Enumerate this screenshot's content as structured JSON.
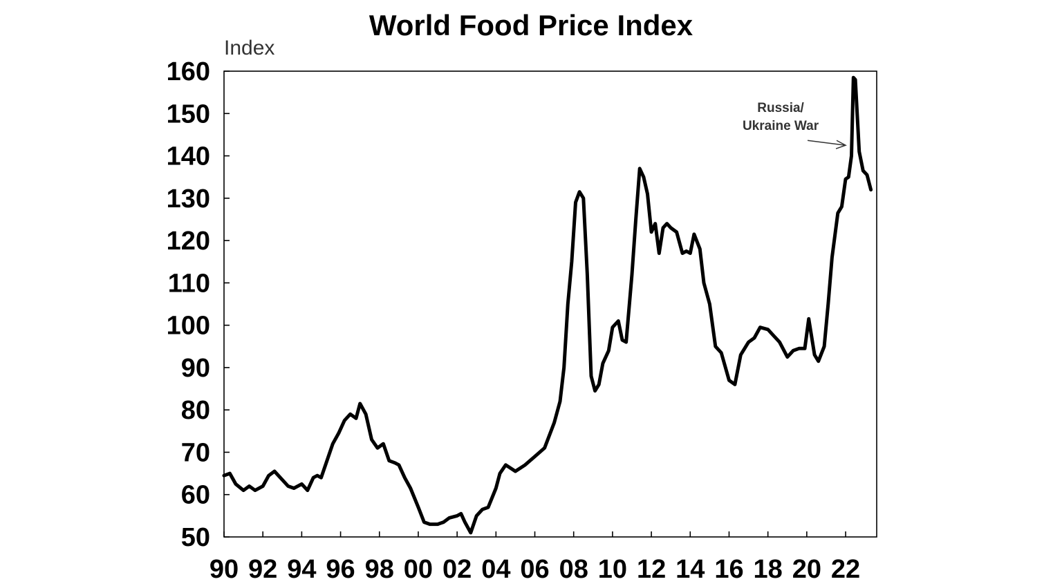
{
  "chart_data": {
    "type": "line",
    "title": "World Food Price Index",
    "ylabel": "Index",
    "xlabel": "",
    "ylim": [
      50,
      160
    ],
    "yticks": [
      50,
      60,
      70,
      80,
      90,
      100,
      110,
      120,
      130,
      140,
      150,
      160
    ],
    "xlim": [
      1990.0,
      2023.6
    ],
    "xticks": [
      1990,
      1992,
      1994,
      1996,
      1998,
      2000,
      2002,
      2004,
      2006,
      2008,
      2010,
      2012,
      2014,
      2016,
      2018,
      2020,
      2022
    ],
    "xtick_labels": [
      "90",
      "92",
      "94",
      "96",
      "98",
      "00",
      "02",
      "04",
      "06",
      "08",
      "10",
      "12",
      "14",
      "16",
      "18",
      "20",
      "22"
    ],
    "grid": false,
    "line_color": "#000000",
    "annotations": [
      {
        "text_lines": [
          "Russia/",
          "Ukraine War"
        ],
        "arrow_to": [
          2022.0,
          142.5
        ]
      }
    ],
    "series": [
      {
        "x": [
          1990.0,
          1990.3,
          1990.6,
          1991.0,
          1991.3,
          1991.6,
          1992.0,
          1992.3,
          1992.6,
          1993.0,
          1993.3,
          1993.6,
          1994.0,
          1994.3,
          1994.6,
          1994.8,
          1995.0,
          1995.3,
          1995.6,
          1995.9,
          1996.2,
          1996.5,
          1996.8,
          1997.0,
          1997.3,
          1997.6,
          1997.9,
          1998.2,
          1998.5,
          1998.8,
          1999.0,
          1999.3,
          1999.6,
          2000.0,
          2000.3,
          2000.6,
          2001.0,
          2001.3,
          2001.6,
          2002.0,
          2002.2,
          2002.4,
          2002.7,
          2003.0,
          2003.3,
          2003.6,
          2004.0,
          2004.2,
          2004.5,
          2005.0,
          2005.5,
          2006.0,
          2006.5,
          2007.0,
          2007.3,
          2007.5,
          2007.7,
          2007.9,
          2008.1,
          2008.3,
          2008.5,
          2008.7,
          2008.9,
          2009.1,
          2009.3,
          2009.5,
          2009.8,
          2010.0,
          2010.3,
          2010.5,
          2010.7,
          2011.0,
          2011.2,
          2011.4,
          2011.6,
          2011.8,
          2012.0,
          2012.2,
          2012.4,
          2012.6,
          2012.8,
          2013.0,
          2013.3,
          2013.6,
          2013.8,
          2014.0,
          2014.2,
          2014.5,
          2014.7,
          2015.0,
          2015.3,
          2015.6,
          2016.0,
          2016.3,
          2016.6,
          2017.0,
          2017.3,
          2017.6,
          2018.0,
          2018.3,
          2018.6,
          2019.0,
          2019.3,
          2019.6,
          2019.9,
          2020.1,
          2020.4,
          2020.6,
          2020.9,
          2021.1,
          2021.3,
          2021.6,
          2021.8,
          2022.0,
          2022.15,
          2022.3,
          2022.4,
          2022.5,
          2022.7,
          2022.9,
          2023.1,
          2023.3
        ],
        "values": [
          64.5,
          65.0,
          62.5,
          61.0,
          62.0,
          61.0,
          62.0,
          64.5,
          65.5,
          63.5,
          62.0,
          61.5,
          62.5,
          61.0,
          64.0,
          64.5,
          64.0,
          68.0,
          72.0,
          74.5,
          77.5,
          79.0,
          78.0,
          81.5,
          79.0,
          73.0,
          71.0,
          72.0,
          68.0,
          67.5,
          67.0,
          64.0,
          61.5,
          57.0,
          53.5,
          53.0,
          53.0,
          53.5,
          54.5,
          55.0,
          55.5,
          53.5,
          51.0,
          55.0,
          56.5,
          57.0,
          61.5,
          65.0,
          67.0,
          65.5,
          67.0,
          69.0,
          71.0,
          77.0,
          82.0,
          90.0,
          105.0,
          115.0,
          129.0,
          131.5,
          130.0,
          112.0,
          88.0,
          84.5,
          86.0,
          91.0,
          94.0,
          99.5,
          101.0,
          96.5,
          96.0,
          112.0,
          125.0,
          137.0,
          135.0,
          131.0,
          122.0,
          124.0,
          117.0,
          123.0,
          124.0,
          123.0,
          122.0,
          117.0,
          117.5,
          117.0,
          121.5,
          118.0,
          110.0,
          105.0,
          95.0,
          93.5,
          87.0,
          86.0,
          93.0,
          96.0,
          97.0,
          99.5,
          99.0,
          97.5,
          96.0,
          92.5,
          94.0,
          94.5,
          94.5,
          101.5,
          93.0,
          91.5,
          95.0,
          105.0,
          116.0,
          126.5,
          128.0,
          134.5,
          135.0,
          140.0,
          158.5,
          158.0,
          141.0,
          136.5,
          135.5,
          132.0
        ]
      }
    ]
  }
}
